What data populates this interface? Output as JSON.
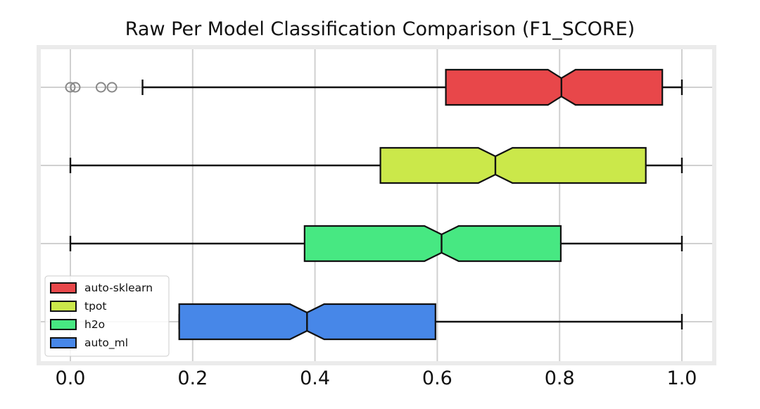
{
  "chart_data": {
    "type": "boxplot",
    "orientation": "horizontal",
    "notched": true,
    "title": "Raw Per Model Classification Comparison (F1_SCORE)",
    "xlabel": "",
    "ylabel": "",
    "xlim": [
      -0.04,
      1.045
    ],
    "grid": true,
    "legend_position": "bottom-left",
    "x_ticks": [
      0.0,
      0.2,
      0.4,
      0.6,
      0.8,
      1.0
    ],
    "x_tick_labels": [
      "0.0",
      "0.2",
      "0.4",
      "0.6",
      "0.8",
      "1.0"
    ],
    "series": [
      {
        "name": "auto-sklearn",
        "color": "#e8474a",
        "whisker_low": 0.118,
        "q1": 0.614,
        "median": 0.803,
        "q3": 0.968,
        "whisker_high": 1.0,
        "notch_low": 0.781,
        "notch_high": 0.826,
        "outliers": [
          0.0,
          0.008,
          0.05,
          0.068
        ]
      },
      {
        "name": "tpot",
        "color": "#cbe84a",
        "whisker_low": 0.0,
        "q1": 0.507,
        "median": 0.695,
        "q3": 0.941,
        "whisker_high": 1.0,
        "notch_low": 0.667,
        "notch_high": 0.723,
        "outliers": []
      },
      {
        "name": "h2o",
        "color": "#47e882",
        "whisker_low": 0.0,
        "q1": 0.383,
        "median": 0.607,
        "q3": 0.802,
        "whisker_high": 1.0,
        "notch_low": 0.579,
        "notch_high": 0.635,
        "outliers": []
      },
      {
        "name": "auto_ml",
        "color": "#4787e8",
        "whisker_low": 0.178,
        "q1": 0.178,
        "median": 0.387,
        "q3": 0.597,
        "whisker_high": 1.0,
        "notch_low": 0.359,
        "notch_high": 0.415,
        "outliers": []
      }
    ]
  }
}
